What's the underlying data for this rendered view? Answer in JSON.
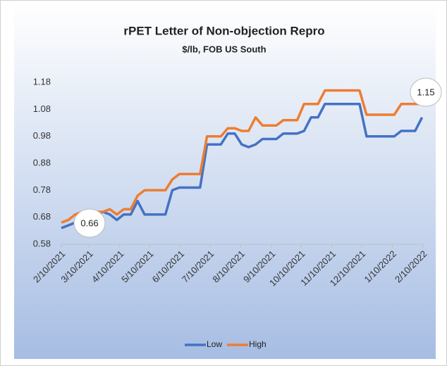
{
  "chart_data": {
    "type": "line",
    "title": "rPET Letter of Non-objection Repro",
    "subtitle": "$/lb, FOB US South",
    "x": [
      "2/10/2021",
      "2/17/2021",
      "2/24/2021",
      "3/3/2021",
      "3/10/2021",
      "3/17/2021",
      "3/24/2021",
      "3/31/2021",
      "4/7/2021",
      "4/14/2021",
      "4/21/2021",
      "4/28/2021",
      "5/5/2021",
      "5/12/2021",
      "5/19/2021",
      "5/26/2021",
      "6/2/2021",
      "6/9/2021",
      "6/16/2021",
      "6/23/2021",
      "6/30/2021",
      "7/7/2021",
      "7/14/2021",
      "7/21/2021",
      "7/28/2021",
      "8/4/2021",
      "8/11/2021",
      "8/18/2021",
      "8/25/2021",
      "9/1/2021",
      "9/8/2021",
      "9/15/2021",
      "9/22/2021",
      "9/29/2021",
      "10/6/2021",
      "10/13/2021",
      "10/20/2021",
      "10/27/2021",
      "11/3/2021",
      "11/10/2021",
      "11/17/2021",
      "11/24/2021",
      "12/1/2021",
      "12/8/2021",
      "12/15/2021",
      "12/22/2021",
      "12/29/2021",
      "1/5/2022",
      "1/12/2022",
      "1/19/2022",
      "1/26/2022",
      "2/2/2022",
      "2/9/2022"
    ],
    "series": [
      {
        "name": "Low",
        "color": "#4472c4",
        "values": [
          0.64,
          0.65,
          0.66,
          0.66,
          0.69,
          0.69,
          0.7,
          0.69,
          0.67,
          0.69,
          0.69,
          0.74,
          0.69,
          0.69,
          0.69,
          0.69,
          0.78,
          0.79,
          0.79,
          0.79,
          0.79,
          0.95,
          0.95,
          0.95,
          0.99,
          0.99,
          0.95,
          0.94,
          0.95,
          0.97,
          0.97,
          0.97,
          0.99,
          0.99,
          0.99,
          1.0,
          1.05,
          1.05,
          1.1,
          1.1,
          1.1,
          1.1,
          1.1,
          1.1,
          0.98,
          0.98,
          0.98,
          0.98,
          0.98,
          1.0,
          1.0,
          1.0,
          1.05
        ]
      },
      {
        "name": "High",
        "color": "#ed7d31",
        "values": [
          0.66,
          0.67,
          0.69,
          0.7,
          0.7,
          0.7,
          0.7,
          0.71,
          0.69,
          0.71,
          0.71,
          0.76,
          0.78,
          0.78,
          0.78,
          0.78,
          0.82,
          0.84,
          0.84,
          0.84,
          0.84,
          0.98,
          0.98,
          0.98,
          1.01,
          1.01,
          1.0,
          1.0,
          1.05,
          1.02,
          1.02,
          1.02,
          1.04,
          1.04,
          1.04,
          1.1,
          1.1,
          1.1,
          1.15,
          1.15,
          1.15,
          1.15,
          1.15,
          1.15,
          1.06,
          1.06,
          1.06,
          1.06,
          1.06,
          1.1,
          1.1,
          1.1,
          1.1
        ]
      }
    ],
    "xticks": [
      "2/10/2021",
      "3/10/2021",
      "4/10/2021",
      "5/10/2021",
      "6/10/2021",
      "7/10/2021",
      "8/10/2021",
      "9/10/2021",
      "10/10/2021",
      "11/10/2021",
      "12/10/2021",
      "1/10/2022",
      "2/10/2022"
    ],
    "ylim": [
      0.58,
      1.18
    ],
    "yticks": [
      {
        "value": 0.58,
        "label": "0.58"
      },
      {
        "value": 0.68,
        "label": "0.68"
      },
      {
        "value": 0.78,
        "label": "0.78"
      },
      {
        "value": 0.88,
        "label": "0.88"
      },
      {
        "value": 0.98,
        "label": "0.98"
      },
      {
        "value": 1.08,
        "label": "1.08"
      },
      {
        "value": 1.18,
        "label": "1.18"
      }
    ],
    "annotations": [
      "0.66",
      "1.15"
    ],
    "grid": false,
    "legend": "bottom"
  }
}
